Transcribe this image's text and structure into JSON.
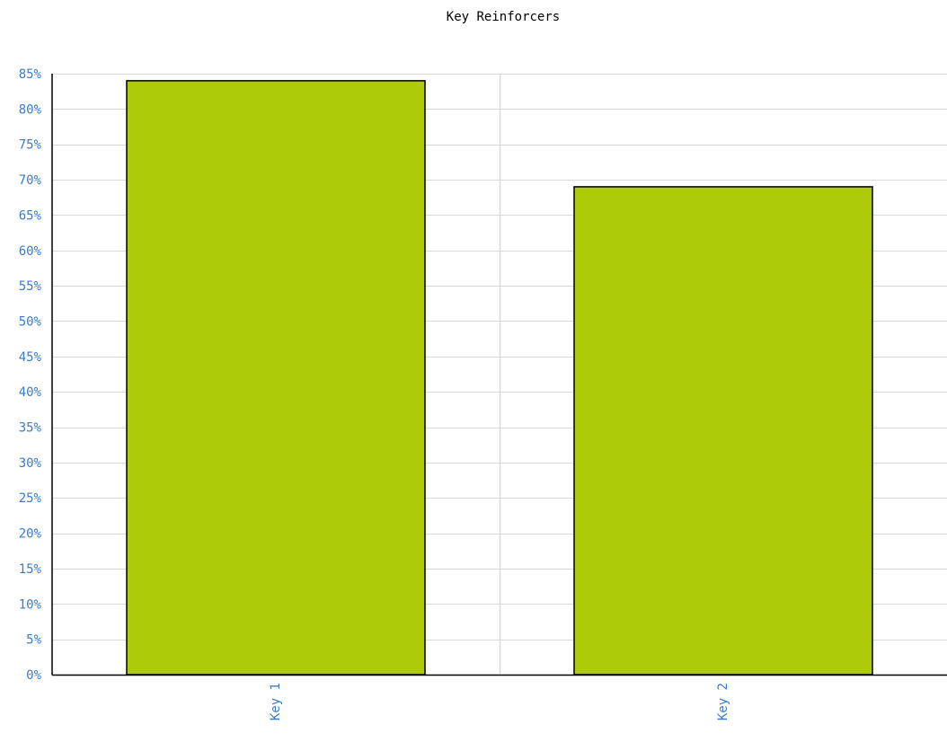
{
  "chart_data": {
    "type": "bar",
    "title": "Key Reinforcers",
    "xlabel": "",
    "ylabel": "",
    "categories": [
      "Key 1",
      "Key 2"
    ],
    "values": [
      84,
      69
    ],
    "y_unit": "%",
    "ylim": [
      0,
      85
    ],
    "y_ticks": [
      0,
      5,
      10,
      15,
      20,
      25,
      30,
      35,
      40,
      45,
      50,
      55,
      60,
      65,
      70,
      75,
      80,
      85
    ],
    "y_tick_labels": [
      "0%",
      "5%",
      "10%",
      "15%",
      "20%",
      "25%",
      "30%",
      "35%",
      "40%",
      "45%",
      "50%",
      "55%",
      "60%",
      "65%",
      "70%",
      "75%",
      "80%",
      "85%"
    ],
    "grid": true,
    "legend": "none",
    "colors": {
      "bar": "#afca08",
      "bar_stroke": "#000000",
      "grid": "#d8d8d8",
      "axis": "#000000",
      "tick_label": "#3a7cc6",
      "title": "#000000"
    }
  }
}
